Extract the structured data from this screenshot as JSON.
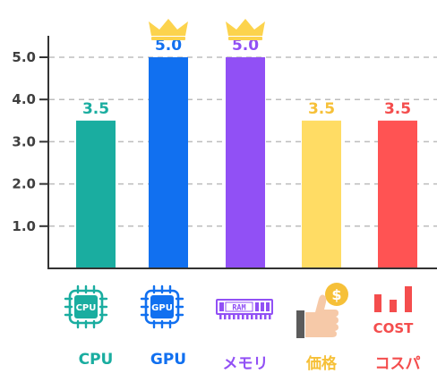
{
  "chart_data": {
    "type": "bar",
    "categories": [
      "CPU",
      "GPU",
      "メモリ",
      "価格",
      "コスパ"
    ],
    "values": [
      3.5,
      5.0,
      5.0,
      3.5,
      3.5
    ],
    "value_labels": [
      "3.5",
      "5.0",
      "5.0",
      "3.5",
      "3.5"
    ],
    "yticks": [
      "1.0",
      "2.0",
      "3.0",
      "4.0",
      "5.0"
    ],
    "ylim": [
      0,
      5.8
    ],
    "grid": "horizontal dashed",
    "colors": [
      "#1aada0",
      "#1170f0",
      "#9150f5",
      "#ffdc64",
      "#ff5353"
    ],
    "label_colors": [
      "#1aada0",
      "#1170f0",
      "#9150f5",
      "#f6c038",
      "#f44d4d"
    ],
    "crowned": [
      false,
      true,
      true,
      false,
      false
    ],
    "crown_color": "#fcd34d"
  },
  "icons": {
    "cpu_chip_text": "CPU",
    "gpu_chip_text": "GPU",
    "ram_text": "RAM",
    "price_coin_text": "$",
    "cost_text": "COST",
    "names": [
      "cpu-chip-icon",
      "gpu-chip-icon",
      "memory-module-icon",
      "thumbs-up-coin-icon",
      "cost-bar-icon"
    ]
  }
}
